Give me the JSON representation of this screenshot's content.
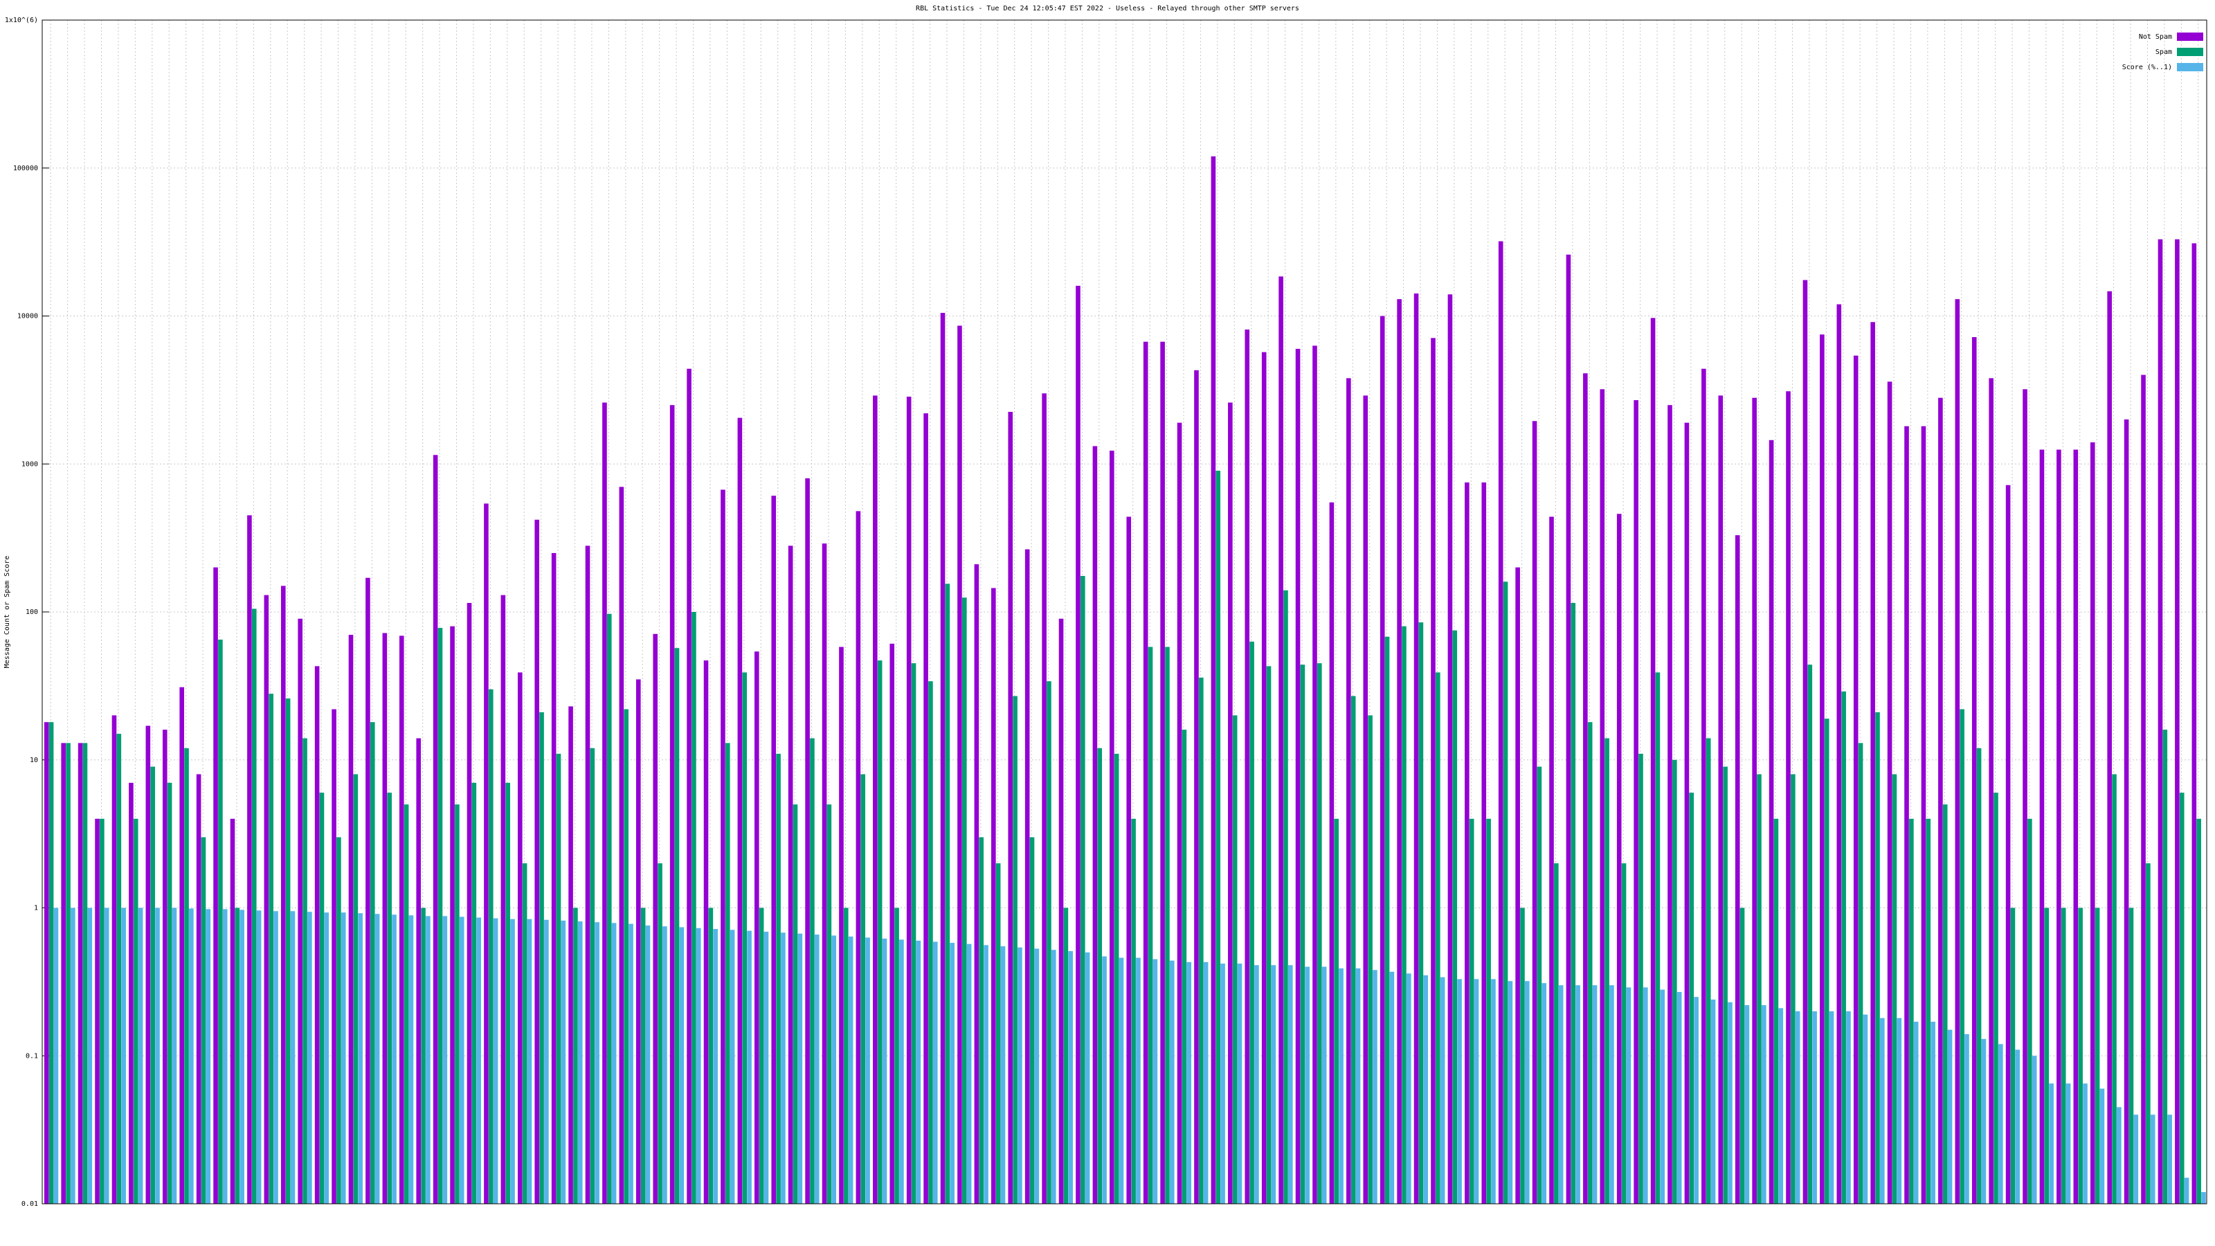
{
  "chart_data": {
    "type": "bar",
    "title": "RBL Statistics - Tue Dec 24 12:05:47 EST 2022 - Useless - Relayed through other SMTP servers",
    "y_label": "Message Count or Spam Score",
    "log_scale": true,
    "grid": true,
    "legend": "top-right",
    "ylim": [
      0.01,
      1000000
    ],
    "yticks": [
      0.01,
      0.1,
      1,
      10,
      100,
      1000,
      10000,
      100000,
      {
        "value": 1000000,
        "label": "1x10^(6)"
      }
    ],
    "series": [
      {
        "name": "Not Spam",
        "color": "#9400d3",
        "values": [
          18,
          13,
          13,
          4,
          20,
          7,
          17,
          16,
          31,
          8,
          200,
          4,
          450,
          130,
          150,
          90,
          43,
          22,
          70,
          170,
          72,
          69,
          14,
          1150,
          80,
          115,
          540,
          130,
          39,
          420,
          250,
          23,
          280,
          2600,
          700,
          35,
          71,
          2500,
          4400,
          47,
          670,
          2050,
          54,
          610,
          280,
          800,
          290,
          58,
          480,
          2900,
          61,
          2850,
          2200,
          10500,
          8600,
          210,
          145,
          2250,
          265,
          3000,
          90,
          16000,
          1320,
          1230,
          440,
          6700,
          6700,
          1900,
          4300,
          120000,
          2600,
          8100,
          5700,
          18500,
          6000,
          6300,
          550,
          3800,
          2900,
          10000,
          13000,
          14200,
          7100,
          14000,
          750,
          750,
          32000,
          200,
          1950,
          440,
          26000,
          4100,
          3200,
          460,
          2700,
          9700,
          2500,
          1900,
          4400,
          2900,
          330,
          2800,
          1450,
          3100,
          17500,
          7500,
          12000,
          5400,
          9100,
          3600,
          1800,
          1800,
          2800,
          13000,
          7200,
          3800,
          720,
          3200,
          1250,
          1250,
          1250,
          1400,
          14700,
          2000,
          4000,
          33000,
          33000,
          31000
        ]
      },
      {
        "name": "Spam",
        "color": "#009e73",
        "values": [
          18,
          13,
          13,
          4,
          15,
          4,
          9,
          7,
          12,
          3,
          65,
          1,
          105,
          28,
          26,
          14,
          6,
          3,
          8,
          18,
          6,
          5,
          1,
          78,
          5,
          7,
          30,
          7,
          2,
          21,
          11,
          1,
          12,
          97,
          22,
          1,
          2,
          57,
          100,
          1,
          13,
          39,
          1,
          11,
          5,
          14,
          5,
          1,
          8,
          47,
          1,
          45,
          34,
          155,
          125,
          3,
          2,
          27,
          3,
          34,
          1,
          175,
          12,
          11,
          4,
          58,
          58,
          16,
          36,
          900,
          20,
          63,
          43,
          140,
          44,
          45,
          4,
          27,
          20,
          68,
          80,
          85,
          39,
          75,
          4,
          4,
          160,
          1,
          9,
          2,
          115,
          18,
          14,
          2,
          11,
          39,
          10,
          6,
          14,
          9,
          1,
          8,
          4,
          8,
          44,
          19,
          29,
          13,
          21,
          8,
          4,
          4,
          5,
          22,
          12,
          6,
          1,
          4,
          1,
          1,
          1,
          1,
          8,
          1,
          2,
          16,
          6,
          4
        ]
      },
      {
        "name": "Score (%..1)",
        "color": "#56b4e9",
        "values": [
          1,
          1,
          1,
          1,
          1,
          1,
          1,
          1,
          0.99,
          0.98,
          0.98,
          0.97,
          0.96,
          0.95,
          0.95,
          0.94,
          0.93,
          0.93,
          0.92,
          0.91,
          0.9,
          0.89,
          0.88,
          0.88,
          0.87,
          0.86,
          0.85,
          0.84,
          0.84,
          0.83,
          0.82,
          0.81,
          0.8,
          0.79,
          0.78,
          0.76,
          0.75,
          0.74,
          0.73,
          0.72,
          0.71,
          0.7,
          0.69,
          0.68,
          0.67,
          0.66,
          0.65,
          0.64,
          0.63,
          0.62,
          0.61,
          0.6,
          0.59,
          0.58,
          0.57,
          0.56,
          0.55,
          0.54,
          0.53,
          0.52,
          0.51,
          0.5,
          0.47,
          0.46,
          0.46,
          0.45,
          0.44,
          0.43,
          0.43,
          0.42,
          0.42,
          0.41,
          0.41,
          0.41,
          0.4,
          0.4,
          0.39,
          0.39,
          0.38,
          0.37,
          0.36,
          0.35,
          0.34,
          0.33,
          0.33,
          0.33,
          0.32,
          0.32,
          0.31,
          0.3,
          0.3,
          0.3,
          0.3,
          0.29,
          0.29,
          0.28,
          0.27,
          0.25,
          0.24,
          0.23,
          0.22,
          0.22,
          0.21,
          0.2,
          0.2,
          0.2,
          0.2,
          0.19,
          0.18,
          0.18,
          0.17,
          0.17,
          0.15,
          0.14,
          0.13,
          0.12,
          0.11,
          0.1,
          0.065,
          0.065,
          0.065,
          0.06,
          0.045,
          0.04,
          0.04,
          0.04,
          0.015,
          0.012
        ]
      }
    ]
  }
}
